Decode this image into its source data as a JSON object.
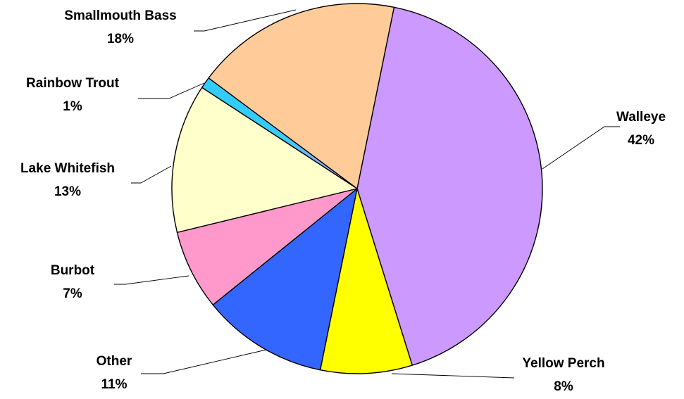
{
  "chart_data": {
    "type": "pie",
    "title": "",
    "series": [
      {
        "name": "Walleye",
        "value": 42,
        "label": "42%",
        "color": "#cc99ff"
      },
      {
        "name": "Yellow Perch",
        "value": 8,
        "label": "8%",
        "color": "#ffff00"
      },
      {
        "name": "Other",
        "value": 11,
        "label": "11%",
        "color": "#3366ff"
      },
      {
        "name": "Burbot",
        "value": 7,
        "label": "7%",
        "color": "#ff99cc"
      },
      {
        "name": "Lake Whitefish",
        "value": 13,
        "label": "13%",
        "color": "#ffffcc"
      },
      {
        "name": "Rainbow Trout",
        "value": 1,
        "label": "1%",
        "color": "gradient:#33ccff-#cc99ff"
      },
      {
        "name": "Smallmouth Bass",
        "value": 18,
        "label": "18%",
        "color": "#ffcc99"
      }
    ],
    "start_slice": "Walleye",
    "direction": "clockwise",
    "legend": "none",
    "data_labels": "outside-with-leader-lines"
  }
}
